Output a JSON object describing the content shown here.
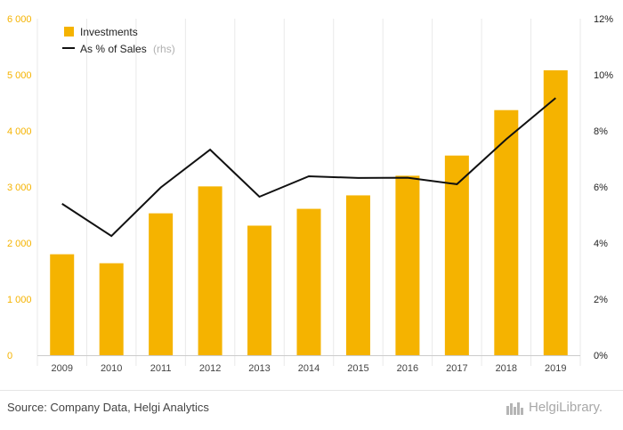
{
  "colors": {
    "bar": "#f5b300",
    "line": "#111111",
    "leftTick": "#f5b300",
    "rightTick": "#222222",
    "grid": "#e9e9e9"
  },
  "legend": {
    "bar_label": "Investments",
    "line_label": "As % of Sales",
    "line_suffix": "(rhs)"
  },
  "source": "Source: Company Data, Helgi Analytics",
  "logo": {
    "text": "HelgiLibrary.",
    "icon": "helgi-logo-icon"
  },
  "chart_data": {
    "type": "bar",
    "categories": [
      "2009",
      "2010",
      "2011",
      "2012",
      "2013",
      "2014",
      "2015",
      "2016",
      "2017",
      "2018",
      "2019"
    ],
    "series": [
      {
        "name": "Investments",
        "type": "bar",
        "axis": "left",
        "values": [
          1800,
          1640,
          2530,
          3010,
          2310,
          2610,
          2850,
          3200,
          3560,
          4370,
          5080
        ]
      },
      {
        "name": "As % of Sales",
        "type": "line",
        "axis": "right",
        "values": [
          5.4,
          4.25,
          5.98,
          7.33,
          5.65,
          6.38,
          6.32,
          6.33,
          6.1,
          7.7,
          9.17
        ]
      }
    ],
    "yLeft": {
      "ylim": [
        0,
        6000
      ],
      "ticks": [
        0,
        1000,
        2000,
        3000,
        4000,
        5000,
        6000
      ],
      "tick_labels": [
        "0",
        "1 000",
        "2 000",
        "3 000",
        "4 000",
        "5 000",
        "6 000"
      ]
    },
    "yRight": {
      "ylim": [
        0,
        12
      ],
      "ticks": [
        0,
        2,
        4,
        6,
        8,
        10,
        12
      ],
      "tick_labels": [
        "0%",
        "2%",
        "4%",
        "6%",
        "8%",
        "10%",
        "12%"
      ]
    },
    "grid": "vertical",
    "legend_position": "top-left"
  }
}
